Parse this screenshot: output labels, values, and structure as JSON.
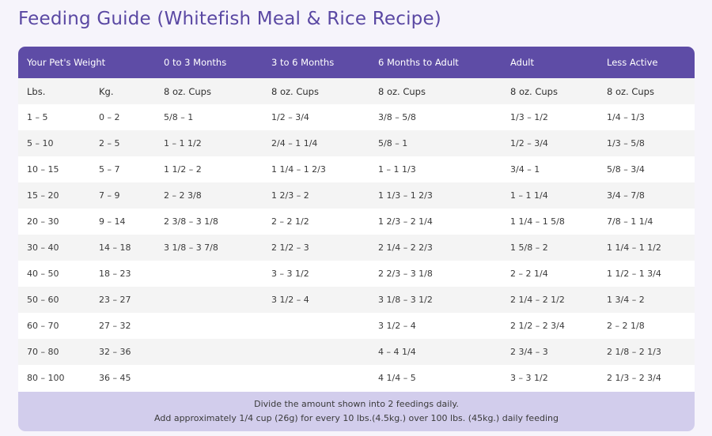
{
  "title": "Feeding Guide (Whitefish Meal & Rice Recipe)",
  "header": [
    "Your Pet's Weight",
    "",
    "0 to 3 Months",
    "3 to 6 Months",
    "6 Months to Adult",
    "Adult",
    "Less Active"
  ],
  "units": [
    "Lbs.",
    "Kg.",
    "8 oz. Cups",
    "8 oz. Cups",
    "8 oz. Cups",
    "8 oz. Cups",
    "8 oz. Cups"
  ],
  "rows": [
    [
      "1 – 5",
      "0 – 2",
      "5/8 – 1",
      "1/2 – 3/4",
      "3/8 – 5/8",
      "1/3 – 1/2",
      "1/4 – 1/3"
    ],
    [
      "5 – 10",
      "2 – 5",
      "1 – 1 1/2",
      "2/4 – 1 1/4",
      "5/8 – 1",
      "1/2 – 3/4",
      "1/3 – 5/8"
    ],
    [
      "10 – 15",
      "5 – 7",
      "1 1/2 – 2",
      "1 1/4 – 1 2/3",
      "1 – 1 1/3",
      "3/4 – 1",
      "5/8 – 3/4"
    ],
    [
      "15 – 20",
      "7 – 9",
      "2 – 2 3/8",
      "1 2/3 – 2",
      "1 1/3 – 1 2/3",
      "1 – 1 1/4",
      "3/4 – 7/8"
    ],
    [
      "20 – 30",
      "9 – 14",
      "2 3/8 – 3 1/8",
      "2 – 2 1/2",
      "1 2/3 – 2 1/4",
      "1 1/4 – 1 5/8",
      "7/8 – 1 1/4"
    ],
    [
      "30 – 40",
      "14 – 18",
      "3 1/8 – 3 7/8",
      "2 1/2 – 3",
      "2 1/4 – 2 2/3",
      "1 5/8 – 2",
      "1 1/4 – 1 1/2"
    ],
    [
      "40 – 50",
      "18 – 23",
      "",
      "3 – 3 1/2",
      "2 2/3 – 3 1/8",
      "2 – 2 1/4",
      "1 1/2 – 1 3/4"
    ],
    [
      "50 – 60",
      "23 – 27",
      "",
      "3 1/2 – 4",
      "3 1/8 – 3 1/2",
      "2 1/4 – 2 1/2",
      "1 3/4 – 2"
    ],
    [
      "60 – 70",
      "27 – 32",
      "",
      "",
      "3 1/2 – 4",
      "2 1/2 – 2 3/4",
      "2 – 2 1/8"
    ],
    [
      "70 – 80",
      "32 – 36",
      "",
      "",
      "4 – 4 1/4",
      "2 3/4 – 3",
      "2 1/8 – 2 1/3"
    ],
    [
      "80 – 100",
      "36 – 45",
      "",
      "",
      "4 1/4 – 5",
      "3 – 3 1/2",
      "2 1/3 – 2 3/4"
    ]
  ],
  "footnote": [
    "Divide the amount shown into 2 feedings daily.",
    "Add approximately 1/4 cup (26g) for every 10 lbs.(4.5kg.) over 100 lbs. (45kg.) daily feeding"
  ],
  "colors": {
    "title": "#5a48a3",
    "header_bg": "#5e4ca6",
    "footer_bg": "#d2cdec",
    "stripe": "#f4f4f4"
  }
}
